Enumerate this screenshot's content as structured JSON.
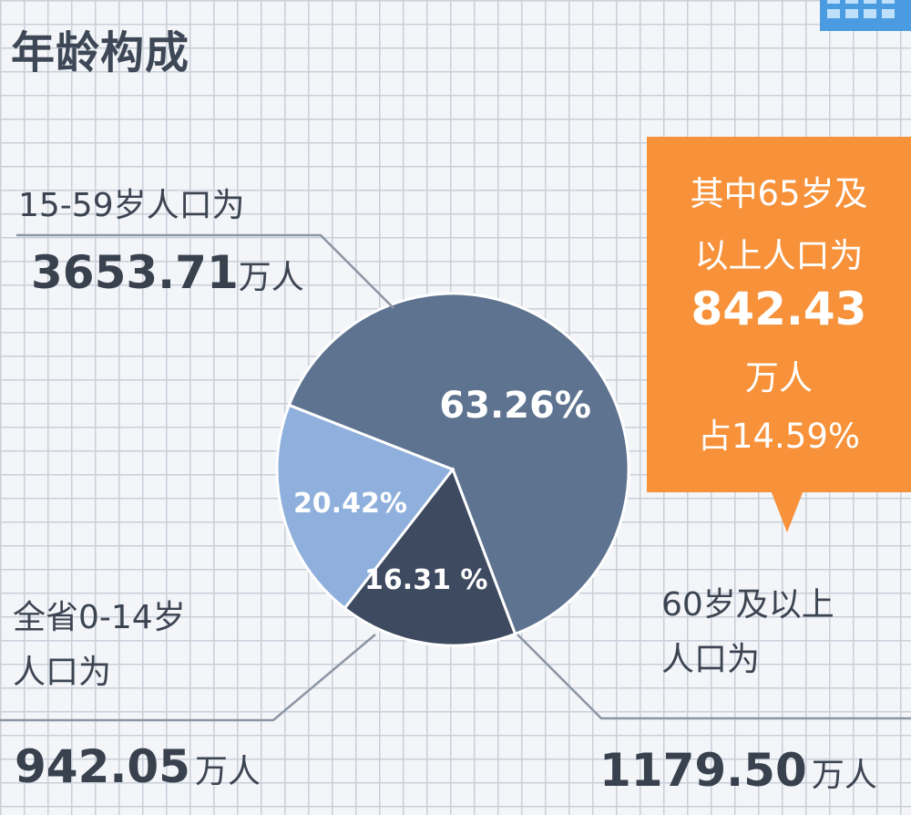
{
  "title": "年龄构成",
  "labels": {
    "age_15_59": {
      "text": "15-59岁人口为",
      "value": "3653.71",
      "unit": "万人"
    },
    "age_0_14": {
      "line1": "全省0-14岁",
      "line2": "人口为",
      "value": "942.05",
      "unit": "万人"
    },
    "age_60_plus": {
      "line1": "60岁及以上",
      "line2": "人口为",
      "value": "1179.50",
      "unit": "万人"
    }
  },
  "callout": {
    "line1": "其中65岁及",
    "line2": "以上人口为",
    "value": "842.43",
    "unit": "万人",
    "share": "占14.59%"
  },
  "colors": {
    "age_15_59": "#5e7390",
    "age_0_14": "#3d4a60",
    "age_60_plus": "#8fb0dc",
    "callout": "#f7923a",
    "leader": "#8c95a3"
  },
  "chart_data": {
    "type": "pie",
    "slices": [
      {
        "category": "15-59岁",
        "value": 63.26,
        "label": "63.26%"
      },
      {
        "category": "60岁及以上",
        "value": 20.42,
        "label": "20.42%"
      },
      {
        "category": "0-14岁",
        "value": 16.31,
        "label": "16.31 %"
      }
    ]
  }
}
